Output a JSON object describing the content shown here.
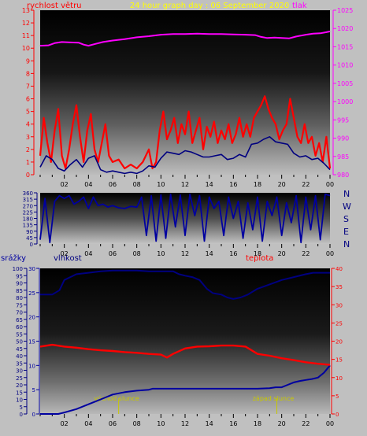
{
  "header": {
    "title": "24 hour graph day : 06 September 2020",
    "wind_label": "rychlost větru",
    "pressure_label": "tlak"
  },
  "direction_labels": [
    "N",
    "W",
    "S",
    "E",
    "N"
  ],
  "bottom_labels": {
    "rain": "srážky",
    "humidity": "vlhkost",
    "temperature": "teplota",
    "sunrise": "východ slunce",
    "sunset": "západ slunce"
  },
  "colors": {
    "background": "#c0c0c0",
    "wind_axis": "#ff0000",
    "pressure_axis": "#ff00ff",
    "title": "#ffff00",
    "humidity_axis": "#000080",
    "temperature_axis": "#ff0000",
    "direction_axis": "#000080",
    "rain_axis": "#0000a0",
    "sun_markers": "#c8c800"
  },
  "chart_data": [
    {
      "type": "line",
      "title": "24 hour graph day : 06 September 2020",
      "xticks": [
        "02",
        "04",
        "06",
        "08",
        "10",
        "12",
        "14",
        "16",
        "18",
        "20",
        "22",
        "00"
      ],
      "ylabel_left": "rychlost větru",
      "ylim_left": [
        0,
        13
      ],
      "yticks_left": [
        "0",
        "1",
        "2",
        "3",
        "4",
        "5",
        "6",
        "7",
        "8",
        "9",
        "10",
        "11",
        "12",
        "13"
      ],
      "ylabel_right": "tlak",
      "ylim_right": [
        980,
        1025
      ],
      "yticks_right": [
        "980",
        "985",
        "990",
        "995",
        "1000",
        "1005",
        "1010",
        "1015",
        "1020",
        "1025"
      ],
      "series": [
        {
          "name": "tlak",
          "color": "#ff00ff",
          "axis": "right",
          "x": [
            0.0,
            0.7,
            1.2,
            1.8,
            2.5,
            3.2,
            3.6,
            4.0,
            4.6,
            5.2,
            6.0,
            7.0,
            8.0,
            9.0,
            10.0,
            11.0,
            12.0,
            13.0,
            14.0,
            15.0,
            16.0,
            17.0,
            17.8,
            18.3,
            18.8,
            19.4,
            20.0,
            20.6,
            21.2,
            22.0,
            22.6,
            23.2,
            23.7,
            24.0
          ],
          "y": [
            1015.3,
            1015.4,
            1016.0,
            1016.3,
            1016.2,
            1016.1,
            1015.6,
            1015.3,
            1015.8,
            1016.3,
            1016.7,
            1017.1,
            1017.6,
            1017.9,
            1018.3,
            1018.5,
            1018.5,
            1018.6,
            1018.5,
            1018.5,
            1018.4,
            1018.3,
            1018.2,
            1017.7,
            1017.4,
            1017.5,
            1017.4,
            1017.3,
            1017.8,
            1018.3,
            1018.6,
            1018.7,
            1019.0,
            1019.2
          ]
        },
        {
          "name": "průměrná rychlost větru",
          "color": "#000080",
          "axis": "left",
          "x": [
            0.0,
            0.5,
            1.0,
            1.5,
            2.0,
            2.5,
            3.0,
            3.5,
            4.0,
            4.5,
            5.0,
            5.5,
            6.0,
            6.5,
            7.0,
            7.5,
            8.0,
            8.5,
            9.0,
            9.5,
            10.0,
            10.5,
            11.0,
            11.5,
            12.0,
            12.5,
            13.0,
            13.5,
            14.0,
            14.5,
            15.0,
            15.5,
            16.0,
            16.5,
            17.0,
            17.5,
            18.0,
            18.5,
            19.0,
            19.5,
            20.0,
            20.5,
            21.0,
            21.5,
            22.0,
            22.5,
            23.0,
            23.5,
            24.0
          ],
          "y": [
            0.6,
            1.5,
            1.2,
            0.5,
            0.3,
            0.8,
            1.2,
            0.6,
            1.3,
            1.5,
            0.4,
            0.2,
            0.3,
            0.2,
            0.1,
            0.2,
            0.1,
            0.3,
            0.7,
            0.6,
            1.3,
            1.8,
            1.7,
            1.6,
            1.9,
            1.8,
            1.6,
            1.4,
            1.4,
            1.5,
            1.6,
            1.2,
            1.3,
            1.6,
            1.4,
            2.4,
            2.5,
            2.8,
            3.0,
            2.6,
            2.5,
            2.4,
            1.7,
            1.4,
            1.5,
            1.2,
            1.3,
            0.9,
            0.4
          ]
        },
        {
          "name": "nárazy větru",
          "color": "#ff0000",
          "axis": "left",
          "x": [
            0.0,
            0.3,
            0.6,
            0.9,
            1.2,
            1.5,
            1.8,
            2.1,
            2.4,
            2.7,
            3.0,
            3.3,
            3.6,
            3.9,
            4.2,
            4.5,
            4.8,
            5.1,
            5.4,
            5.7,
            6.0,
            6.5,
            7.0,
            7.5,
            8.0,
            8.5,
            9.0,
            9.3,
            9.6,
            9.9,
            10.2,
            10.5,
            10.8,
            11.1,
            11.4,
            11.7,
            12.0,
            12.3,
            12.6,
            12.9,
            13.2,
            13.5,
            13.8,
            14.1,
            14.4,
            14.7,
            15.0,
            15.3,
            15.6,
            15.9,
            16.2,
            16.5,
            16.8,
            17.1,
            17.4,
            17.7,
            18.0,
            18.3,
            18.6,
            18.9,
            19.2,
            19.5,
            19.8,
            20.1,
            20.4,
            20.7,
            21.0,
            21.3,
            21.6,
            21.9,
            22.2,
            22.5,
            22.8,
            23.1,
            23.4,
            23.7,
            24.0
          ],
          "y": [
            1.5,
            4.5,
            2.5,
            1.0,
            3.5,
            5.2,
            1.5,
            0.5,
            2.0,
            4.0,
            5.5,
            3.0,
            1.0,
            3.5,
            4.8,
            2.0,
            1.0,
            2.5,
            4.0,
            1.5,
            1.0,
            1.2,
            0.5,
            0.8,
            0.5,
            1.0,
            2.0,
            0.5,
            1.0,
            3.5,
            5.0,
            2.8,
            3.5,
            4.5,
            2.5,
            4.0,
            3.2,
            5.0,
            2.5,
            3.5,
            4.5,
            2.0,
            3.8,
            3.0,
            4.2,
            2.5,
            3.5,
            2.8,
            4.0,
            2.5,
            3.2,
            4.5,
            3.0,
            4.0,
            3.0,
            4.5,
            5.0,
            5.5,
            6.2,
            5.2,
            4.5,
            4.0,
            2.8,
            3.5,
            4.0,
            6.0,
            4.5,
            3.0,
            2.5,
            4.0,
            2.5,
            3.0,
            1.5,
            2.5,
            1.0,
            3.0,
            0.5
          ]
        }
      ]
    },
    {
      "type": "line",
      "ylim": [
        0,
        360
      ],
      "yticks": [
        "0",
        "45",
        "90",
        "135",
        "180",
        "225",
        "270",
        "315",
        "360"
      ],
      "xticks": [
        "02",
        "04",
        "06",
        "08",
        "10",
        "12",
        "14",
        "16",
        "18",
        "20",
        "22",
        "00"
      ],
      "series": [
        {
          "name": "směr větru",
          "color": "#0000a0",
          "x": [
            0.0,
            0.4,
            0.8,
            1.2,
            1.6,
            2.0,
            2.4,
            2.8,
            3.2,
            3.6,
            4.0,
            4.4,
            4.8,
            5.2,
            5.6,
            6.0,
            6.5,
            7.0,
            7.5,
            8.0,
            8.4,
            8.8,
            9.2,
            9.6,
            10.0,
            10.4,
            10.8,
            11.2,
            11.6,
            12.0,
            12.4,
            12.8,
            13.2,
            13.6,
            14.0,
            14.4,
            14.8,
            15.2,
            15.6,
            16.0,
            16.4,
            16.8,
            17.2,
            17.6,
            18.0,
            18.4,
            18.8,
            19.2,
            19.6,
            20.0,
            20.4,
            20.8,
            21.2,
            21.6,
            22.0,
            22.4,
            22.8,
            23.2,
            23.6,
            24.0
          ],
          "y": [
            30,
            320,
            10,
            300,
            340,
            320,
            340,
            280,
            300,
            330,
            250,
            330,
            270,
            280,
            260,
            270,
            255,
            250,
            265,
            260,
            330,
            60,
            340,
            20,
            345,
            40,
            350,
            120,
            345,
            60,
            350,
            200,
            340,
            20,
            330,
            250,
            300,
            60,
            330,
            180,
            300,
            40,
            290,
            100,
            330,
            20,
            300,
            200,
            330,
            60,
            290,
            150,
            340,
            10,
            330,
            100,
            340,
            30,
            350,
            340
          ]
        }
      ]
    },
    {
      "type": "line",
      "xticks": [
        "02",
        "04",
        "06",
        "08",
        "10",
        "12",
        "14",
        "16",
        "18",
        "20",
        "22",
        "00"
      ],
      "ylabel_left": "vlhkost",
      "ylim_left": [
        0,
        100
      ],
      "yticks_left": [
        "0",
        "5",
        "10",
        "15",
        "20",
        "25",
        "30",
        "35",
        "40",
        "45",
        "50",
        "55",
        "60",
        "65",
        "70",
        "75",
        "80",
        "85",
        "90",
        "95",
        "100"
      ],
      "ylabel_right": "teplota",
      "ylim_right": [
        0,
        40
      ],
      "yticks_right": [
        "0",
        "5",
        "10",
        "15",
        "20",
        "25",
        "30",
        "35",
        "40"
      ],
      "rain_axis": {
        "label": "srážky",
        "ylim": [
          0,
          30
        ],
        "yticks": [
          "0",
          "5",
          "10",
          "15",
          "20",
          "25",
          "30"
        ]
      },
      "annotations": [
        {
          "text": "východ slunce",
          "x": 6.5
        },
        {
          "text": "západ slunce",
          "x": 19.6
        }
      ],
      "series": [
        {
          "name": "vlhkost",
          "color": "#000080",
          "axis": "left",
          "x": [
            0.0,
            1.0,
            1.6,
            2.0,
            3.0,
            4.0,
            5.0,
            6.0,
            7.0,
            8.0,
            9.0,
            10.0,
            11.0,
            11.5,
            12.0,
            12.6,
            13.2,
            13.8,
            14.3,
            15.0,
            15.5,
            16.0,
            16.6,
            17.2,
            18.0,
            19.0,
            20.0,
            21.0,
            22.0,
            22.6,
            23.0,
            24.0
          ],
          "y": [
            82,
            82,
            85,
            92,
            96,
            97,
            98,
            98.5,
            98.5,
            98.5,
            98,
            98,
            98,
            96,
            95,
            94,
            92,
            86,
            83,
            82,
            80,
            79,
            80,
            82,
            86,
            89,
            92,
            94,
            96,
            97,
            97,
            97
          ]
        },
        {
          "name": "teplota",
          "color": "#ff0000",
          "axis": "right",
          "x": [
            0.0,
            1.0,
            2.0,
            3.0,
            4.0,
            5.0,
            6.0,
            7.0,
            8.0,
            9.0,
            10.0,
            10.5,
            11.0,
            12.0,
            13.0,
            14.0,
            15.0,
            16.0,
            17.0,
            18.0,
            19.0,
            20.0,
            21.0,
            22.0,
            23.0,
            24.0
          ],
          "y": [
            18.5,
            19.0,
            18.5,
            18.2,
            17.8,
            17.5,
            17.3,
            17.0,
            16.8,
            16.5,
            16.3,
            15.5,
            16.5,
            18.0,
            18.5,
            18.6,
            18.8,
            18.8,
            18.5,
            16.5,
            16.0,
            15.3,
            14.8,
            14.2,
            13.8,
            13.5
          ]
        },
        {
          "name": "srážky",
          "color": "#0000a0",
          "axis": "rain",
          "x": [
            0.0,
            1.5,
            2.0,
            3.0,
            4.0,
            5.0,
            6.0,
            7.0,
            8.0,
            9.0,
            9.3,
            10.0,
            12.0,
            14.0,
            16.0,
            18.0,
            19.0,
            19.5,
            20.0,
            20.5,
            21.0,
            21.5,
            22.0,
            22.5,
            23.0,
            23.5,
            24.0
          ],
          "y": [
            0,
            0,
            0.3,
            1.0,
            2.0,
            3.0,
            4.0,
            4.5,
            4.8,
            5.0,
            5.2,
            5.2,
            5.2,
            5.2,
            5.2,
            5.2,
            5.3,
            5.5,
            5.5,
            6.0,
            6.5,
            6.8,
            7.0,
            7.2,
            7.5,
            8.5,
            10.0
          ]
        }
      ]
    }
  ]
}
